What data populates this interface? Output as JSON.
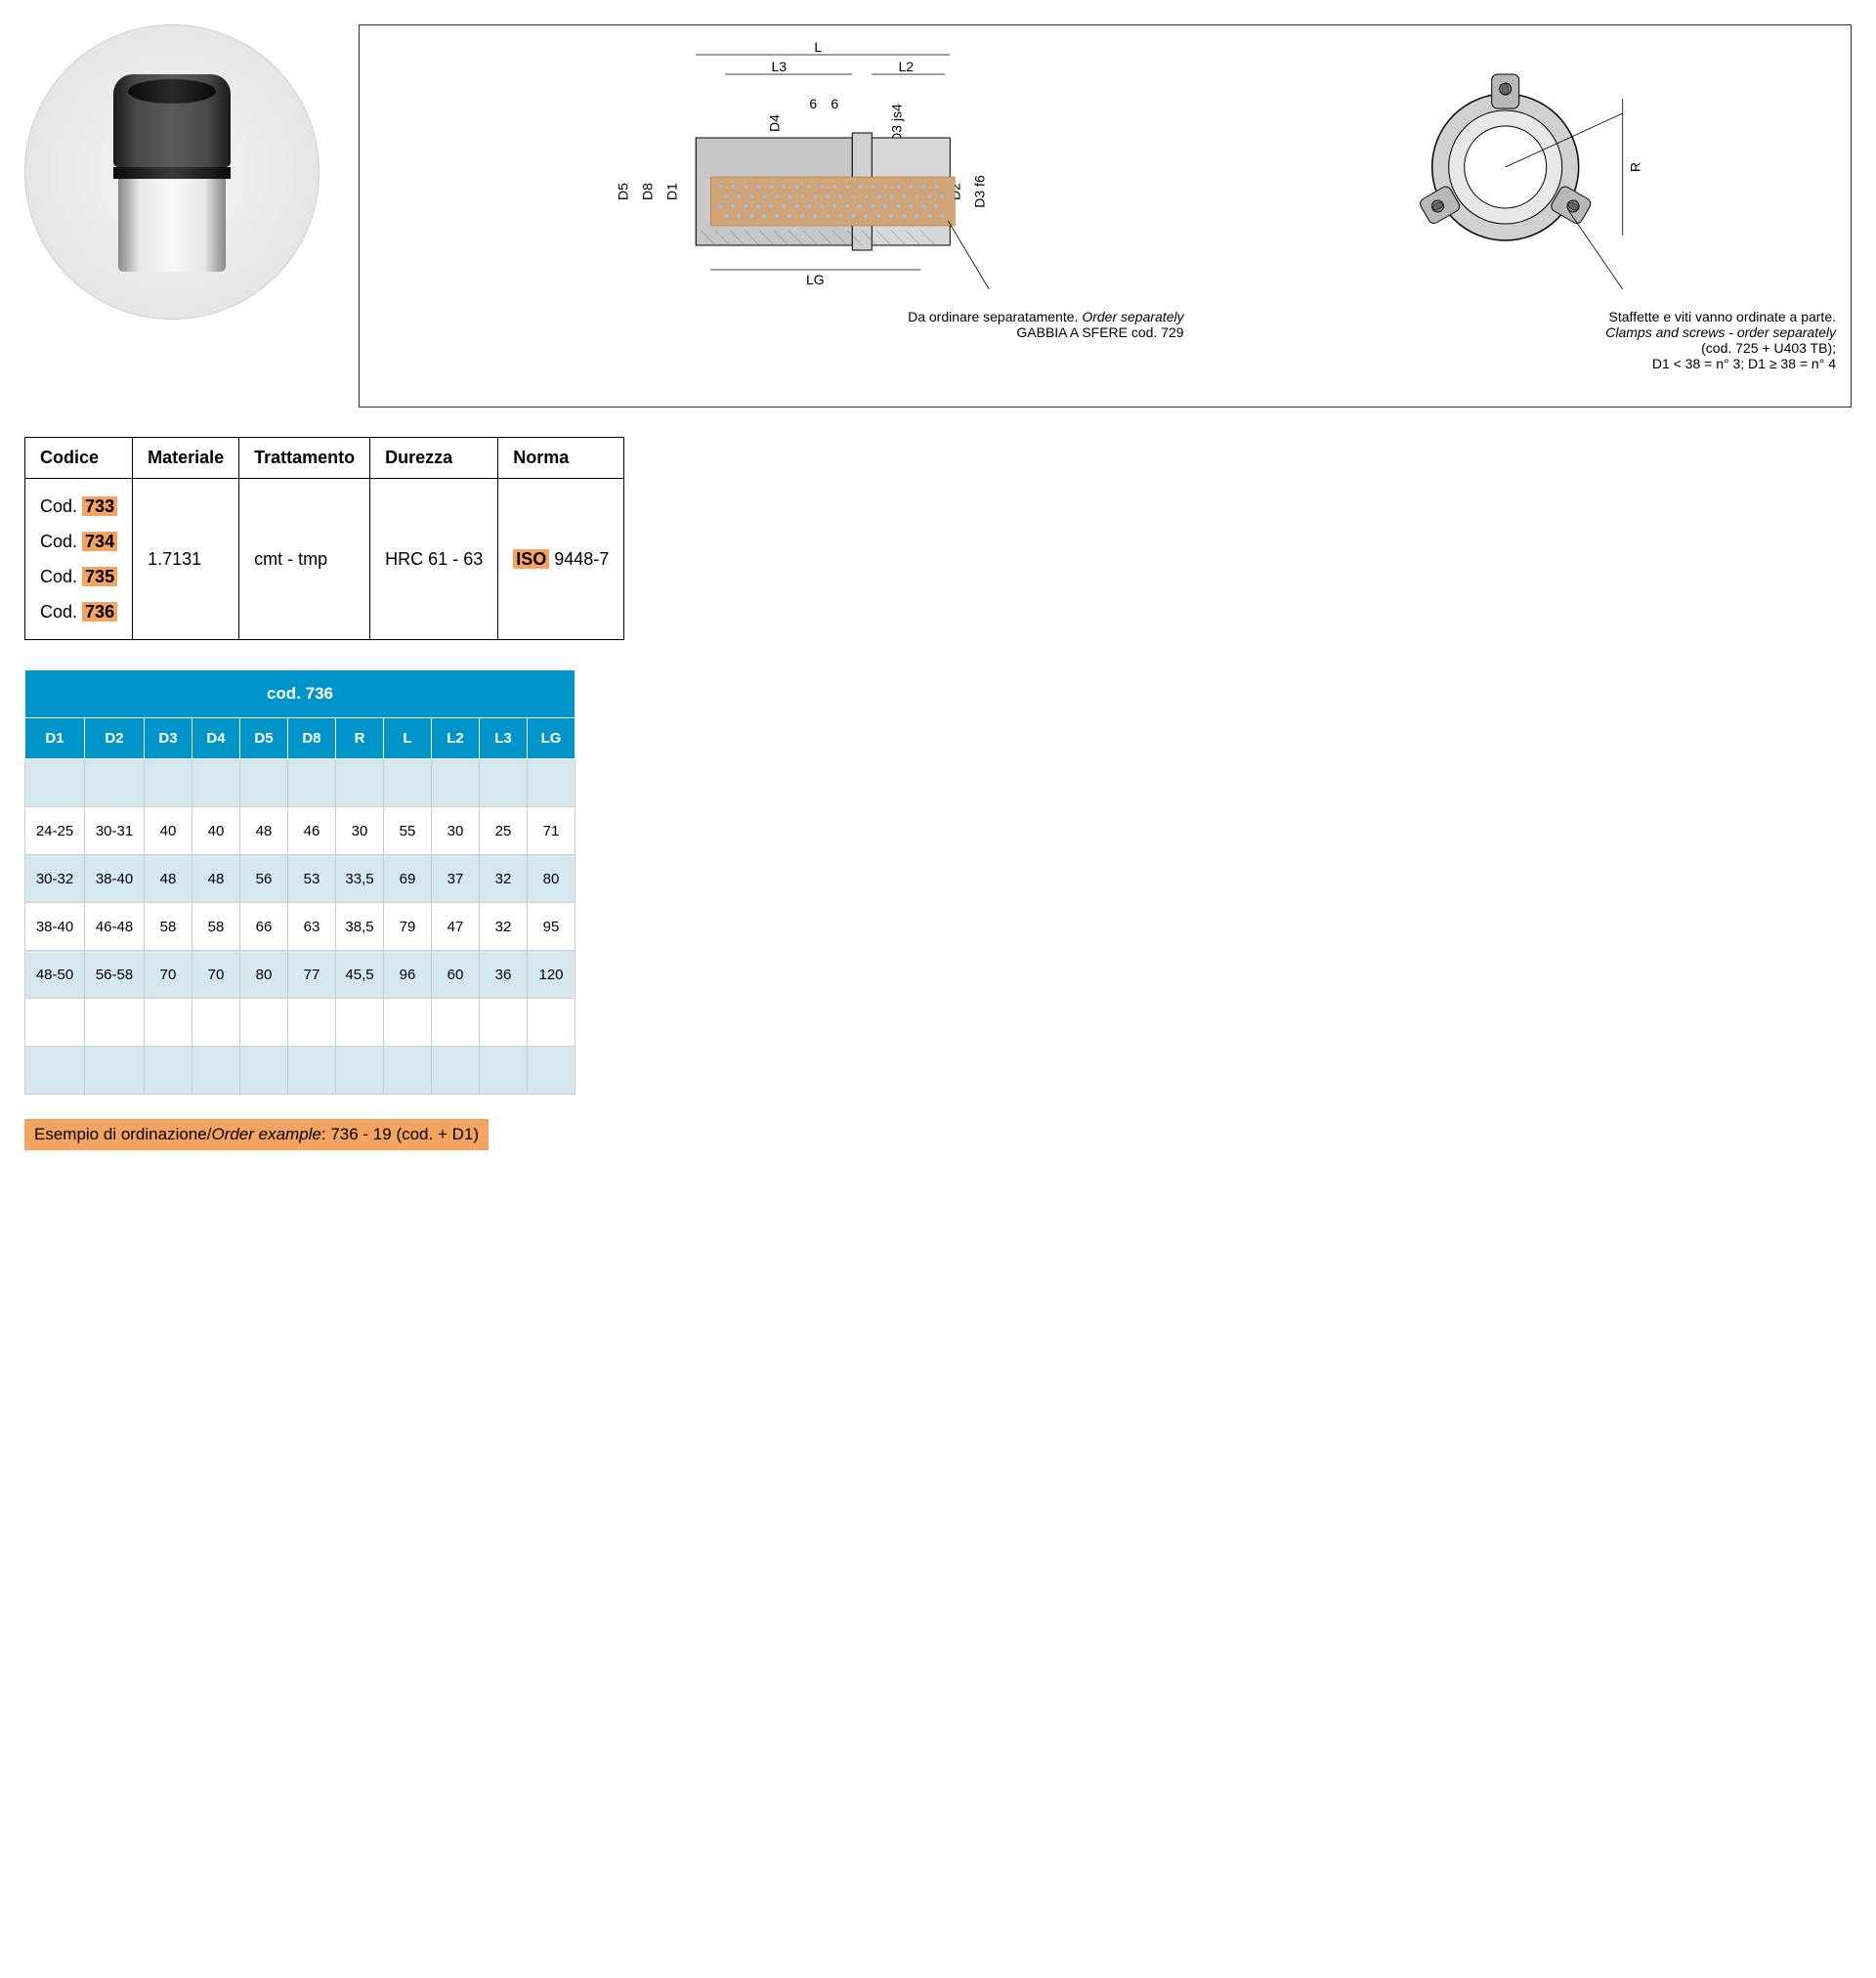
{
  "diagram": {
    "dimension_labels": [
      "L",
      "L3",
      "L2",
      "D4",
      "D3 js4",
      "D5",
      "D8",
      "D1",
      "D2",
      "D3 f6",
      "LG",
      "R",
      "6",
      "6"
    ],
    "left_note_line1": "Da ordinare separatamente.",
    "left_note_line1_italic": "Order separately",
    "left_note_line2": "GABBIA A SFERE cod. 729",
    "right_note_line1": "Staffette e viti vanno ordinate a parte.",
    "right_note_line2_italic": "Clamps and screws - order separately",
    "right_note_line3": "(cod. 725 + U403 TB);",
    "right_note_line4": "D1 < 38 = n° 3; D1 ≥ 38 = n° 4"
  },
  "spec_table": {
    "headers": [
      "Codice",
      "Materiale",
      "Trattamento",
      "Durezza",
      "Norma"
    ],
    "code_prefix": "Cod.",
    "codes": [
      "733",
      "734",
      "735",
      "736"
    ],
    "materiale": "1.7131",
    "trattamento": "cmt - tmp",
    "durezza": "HRC 61 - 63",
    "norma_prefix": "ISO",
    "norma_value": "9448-7"
  },
  "data_table": {
    "title": "cod. 736",
    "columns": [
      "D1",
      "D2",
      "D3",
      "D4",
      "D5",
      "D8",
      "R",
      "L",
      "L2",
      "L3",
      "LG"
    ],
    "rows": [
      [
        "",
        "",
        "",
        "",
        "",
        "",
        "",
        "",
        "",
        "",
        ""
      ],
      [
        "24-25",
        "30-31",
        "40",
        "40",
        "48",
        "46",
        "30",
        "55",
        "30",
        "25",
        "71"
      ],
      [
        "30-32",
        "38-40",
        "48",
        "48",
        "56",
        "53",
        "33,5",
        "69",
        "37",
        "32",
        "80"
      ],
      [
        "38-40",
        "46-48",
        "58",
        "58",
        "66",
        "63",
        "38,5",
        "79",
        "47",
        "32",
        "95"
      ],
      [
        "48-50",
        "56-58",
        "70",
        "70",
        "80",
        "77",
        "45,5",
        "96",
        "60",
        "36",
        "120"
      ],
      [
        "",
        "",
        "",
        "",
        "",
        "",
        "",
        "",
        "",
        "",
        ""
      ],
      [
        "",
        "",
        "",
        "",
        "",
        "",
        "",
        "",
        "",
        "",
        ""
      ]
    ]
  },
  "order_example": {
    "text": "Esempio di ordinazione/",
    "italic": "Order example",
    "value": ": 736 - 19 (cod. + D1)"
  },
  "colors": {
    "highlight": "#f4a460",
    "table_header": "#0095c8",
    "row_alt": "#d4e8ee"
  }
}
